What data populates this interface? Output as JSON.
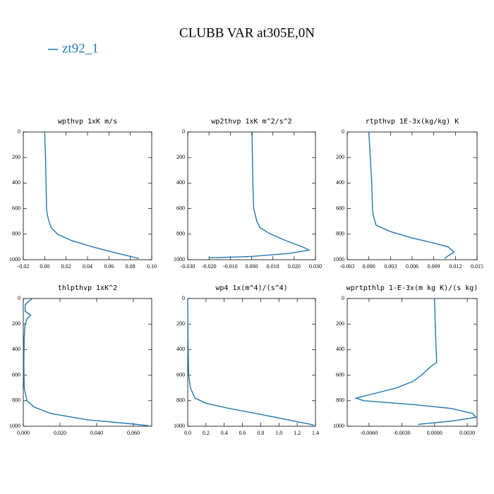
{
  "title": "CLUBB VAR at305E,0N",
  "legend": {
    "name": "zt92_1",
    "color": "#1f77b4"
  },
  "chart_data": [
    {
      "type": "line",
      "title": "wpthvp  1xK m/s",
      "y": [
        0,
        100,
        200,
        300,
        400,
        500,
        600,
        650,
        700,
        750,
        800,
        850,
        900,
        950,
        990
      ],
      "series": [
        {
          "color": "#1f77b4",
          "values": [
            0.0,
            0.0003,
            0.0008,
            0.001,
            0.0013,
            0.0015,
            0.0017,
            0.0025,
            0.004,
            0.006,
            0.012,
            0.025,
            0.045,
            0.068,
            0.088
          ]
        }
      ],
      "xlim": [
        -0.02,
        0.1
      ],
      "ylim": [
        1000,
        0
      ],
      "xticks": [
        -0.02,
        {
          "value": 0,
          "label": "0.00"
        },
        0.02,
        0.04,
        0.06,
        0.08,
        {
          "value": 0.1,
          "label": "0.10"
        }
      ],
      "yticks": [
        0,
        200,
        400,
        600,
        800,
        1000
      ]
    },
    {
      "type": "line",
      "title": "wp2thvp  1xK m^2/s^2",
      "y": [
        0,
        200,
        400,
        600,
        700,
        750,
        800,
        850,
        900,
        925,
        950,
        975,
        985
      ],
      "series": [
        {
          "color": "#1f77b4",
          "values": [
            0.0002,
            0.0004,
            0.0006,
            0.001,
            0.0025,
            0.004,
            0.009,
            0.016,
            0.024,
            0.027,
            0.018,
            0.0,
            -0.02
          ]
        }
      ],
      "xlim": [
        -0.03,
        0.03
      ],
      "ylim": [
        1000,
        0
      ],
      "xticks": [
        {
          "value": -0.03,
          "label": "-0.030"
        },
        {
          "value": -0.02,
          "label": "-0.020"
        },
        {
          "value": -0.01,
          "label": "-0.010"
        },
        {
          "value": 0,
          "label": "0.000"
        },
        {
          "value": 0.01,
          "label": "0.010"
        },
        {
          "value": 0.02,
          "label": "0.020"
        },
        {
          "value": 0.03,
          "label": "0.030"
        }
      ],
      "yticks": [
        0,
        200,
        400,
        600,
        800,
        1000
      ]
    },
    {
      "type": "line",
      "title": "rtpthvp  1E-3x(kg/kg) K",
      "y": [
        0,
        200,
        400,
        600,
        650,
        730,
        780,
        830,
        870,
        900,
        940,
        970,
        990
      ],
      "series": [
        {
          "color": "#1f77b4",
          "values": [
            0.0,
            0.0002,
            0.0004,
            0.0005,
            0.0006,
            0.001,
            0.003,
            0.006,
            0.009,
            0.011,
            0.0118,
            0.011,
            0.0105
          ]
        }
      ],
      "xlim": [
        -0.003,
        0.015
      ],
      "ylim": [
        1000,
        0
      ],
      "xticks": [
        -0.003,
        {
          "value": 0,
          "label": "0.000"
        },
        0.003,
        0.006,
        0.009,
        0.012,
        0.015
      ],
      "yticks": [
        0,
        200,
        400,
        600,
        800,
        1000
      ]
    },
    {
      "type": "line",
      "title": "thlpthvp  1xK^2",
      "y": [
        0,
        20,
        50,
        100,
        130,
        160,
        200,
        300,
        500,
        700,
        800,
        850,
        900,
        950,
        980,
        995
      ],
      "series": [
        {
          "color": "#1f77b4",
          "values": [
            0.005,
            0.003,
            0.001,
            0.001,
            0.004,
            0.002,
            0.001,
            0.0005,
            0.0003,
            0.0005,
            0.002,
            0.006,
            0.015,
            0.035,
            0.058,
            0.068
          ]
        }
      ],
      "xlim": [
        0,
        0.07
      ],
      "ylim": [
        1000,
        0
      ],
      "xticks": [
        {
          "value": 0,
          "label": "0.000"
        },
        {
          "value": 0.02,
          "label": "0.020"
        },
        {
          "value": 0.04,
          "label": "0.040"
        },
        {
          "value": 0.06,
          "label": "0.060"
        }
      ],
      "yticks": [
        0,
        200,
        400,
        600,
        800,
        1000
      ]
    },
    {
      "type": "line",
      "title": "wp4  1x(m^4)/(s^4)",
      "y": [
        0,
        300,
        600,
        700,
        780,
        820,
        860,
        900,
        950,
        990
      ],
      "series": [
        {
          "color": "#1f77b4",
          "values": [
            0.0,
            0.003,
            0.01,
            0.03,
            0.08,
            0.2,
            0.45,
            0.75,
            1.1,
            1.38
          ]
        }
      ],
      "xlim": [
        0,
        1.4
      ],
      "ylim": [
        1000,
        0
      ],
      "xticks": [
        {
          "value": 0,
          "label": "0.0"
        },
        0.2,
        0.4,
        0.6,
        0.8,
        {
          "value": 1,
          "label": "1.0"
        },
        1.2,
        1.4
      ],
      "yticks": [
        0,
        200,
        400,
        600,
        800,
        1000
      ]
    },
    {
      "type": "line",
      "title": "wprtpthlp  1-E-3x(m kg K)/(s kg)",
      "y": [
        0,
        300,
        500,
        530,
        600,
        650,
        700,
        750,
        780,
        800,
        830,
        860,
        900,
        930,
        960,
        985
      ],
      "series": [
        {
          "color": "#1f77b4",
          "values": [
            0.0,
            0.0001,
            0.0002,
            -0.0003,
            -0.0012,
            -0.002,
            -0.0035,
            -0.0058,
            -0.0072,
            -0.0065,
            -0.002,
            0.0015,
            0.0035,
            0.0038,
            0.0015,
            -0.0015
          ]
        }
      ],
      "xlim": [
        -0.008,
        0.0039
      ],
      "ylim": [
        1000,
        0
      ],
      "xticks": [
        {
          "value": -0.006,
          "label": "-0.0060"
        },
        {
          "value": -0.003,
          "label": "-0.0030"
        },
        {
          "value": 0,
          "label": "0.0000"
        },
        {
          "value": 0.003,
          "label": "0.0030"
        }
      ],
      "yticks": [
        0,
        200,
        400,
        600,
        800,
        1000
      ]
    }
  ]
}
